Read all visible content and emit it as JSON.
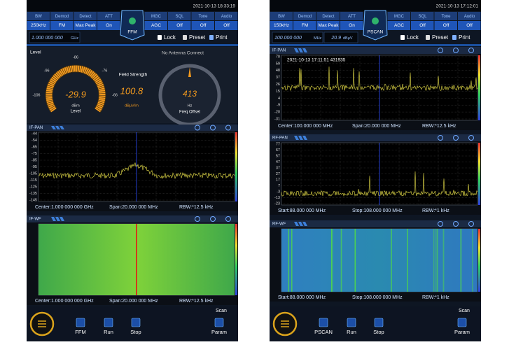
{
  "screens": [
    {
      "status_time": "2021-10-13 18:33:19",
      "params": [
        {
          "label": "BW",
          "value": "250kHz"
        },
        {
          "label": "Demod",
          "value": "FM"
        },
        {
          "label": "Detect",
          "value": "Max Peak"
        },
        {
          "label": "ATT",
          "value": "On"
        },
        {
          "label": "MGC",
          "value": "AGC"
        },
        {
          "label": "SQL",
          "value": "Off"
        },
        {
          "label": "Tone",
          "value": "Off"
        },
        {
          "label": "Audio",
          "value": "Off"
        }
      ],
      "mode": "FFM",
      "frequency": "1.000 000 000",
      "frequency_unit": "GHz",
      "toolbar": [
        "Lock",
        "Preset",
        "Print"
      ],
      "level_panel": {
        "title": "Level",
        "antenna": "No Antenna Connect",
        "gauge_ticks": [
          "-116",
          "-106",
          "-96",
          "-86",
          "-76",
          "-66",
          "-56"
        ],
        "level": "-29.9",
        "level_unit": "dBm",
        "level_label": "Level",
        "field_label": "Field Strength",
        "field_value": "100.8",
        "field_unit": "dBμV/m",
        "offset_value": "413",
        "offset_unit": "Hz",
        "offset_label": "Freq Offset"
      },
      "panels": [
        {
          "title": "IF-PAN",
          "yticks": [
            -44,
            -54,
            -65,
            -75,
            -85,
            -95,
            -105,
            -115,
            -125,
            -135,
            -145
          ],
          "footer": [
            "Center:1.000 000 000 GHz",
            "Span:20.000 000 MHz",
            "RBW:*12.5 kHz"
          ]
        },
        {
          "title": "IF-WF",
          "footer": [
            "Center:1.000 000 000 GHz",
            "Span:20.000 000 MHz",
            "RBW:*12.5 kHz"
          ]
        }
      ],
      "scan": "Scan",
      "buttons": [
        "FFM",
        "Run",
        "Stop",
        "Param"
      ]
    },
    {
      "status_time": "2021-10-13 17:12:01",
      "params": [
        {
          "label": "BW",
          "value": "150kHz"
        },
        {
          "label": "Demod",
          "value": "FM"
        },
        {
          "label": "Detect",
          "value": "Max Peak"
        },
        {
          "label": "ATT",
          "value": "On"
        },
        {
          "label": "MGC",
          "value": "AGC"
        },
        {
          "label": "SQL",
          "value": "Off"
        },
        {
          "label": "Tone",
          "value": "Off"
        },
        {
          "label": "Audio",
          "value": "Off"
        }
      ],
      "mode": "PSCAN",
      "frequency": "100.000 000",
      "frequency_unit": "MHz",
      "field": "20.9",
      "field_unit": "dBμV",
      "toolbar": [
        "Lock",
        "Preset",
        "Print"
      ],
      "panels": [
        {
          "title": "IF-PAN",
          "timestamp": "2021-10-13 17:11:51 431935",
          "yticks": [
            70,
            59,
            48,
            37,
            26,
            15,
            4,
            -9,
            -20,
            -31
          ],
          "footer": [
            "Center:100.000 000 MHz",
            "Span:20.000 000 MHz",
            "RBW:*12.5 kHz"
          ]
        },
        {
          "title": "RF-PAN",
          "yticks": [
            77,
            67,
            57,
            47,
            37,
            27,
            17,
            7,
            -3,
            -13,
            -23
          ],
          "footer": [
            "Start:88.000 000 MHz",
            "Stop:108.000 000 MHz",
            "RBW:*1 kHz"
          ]
        },
        {
          "title": "RF-WF",
          "footer": [
            "Start:88.000 000 MHz",
            "Stop:108.000 000 MHz",
            "RBW:*1 kHz"
          ]
        }
      ],
      "scan": "Scan",
      "buttons": [
        "PSCAN",
        "Run",
        "Stop",
        "Param"
      ]
    }
  ]
}
